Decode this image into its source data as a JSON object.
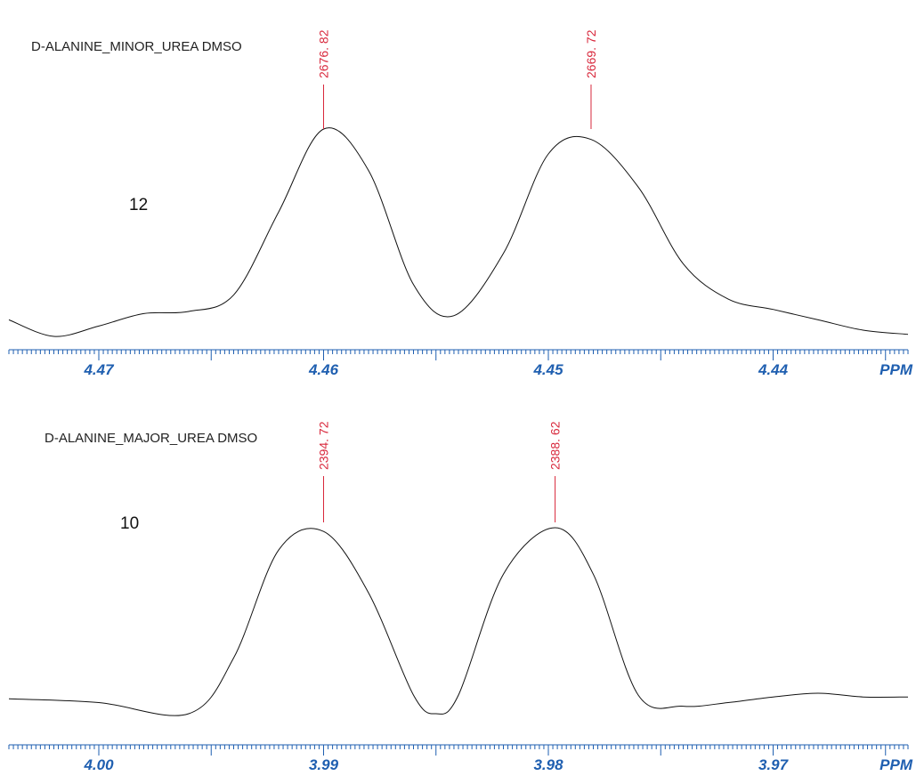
{
  "chart_data": [
    {
      "type": "line",
      "title": "D-ALANINE_MINOR_UREA DMSO",
      "label": "12",
      "xlabel": "PPM",
      "xlim": [
        4.474,
        4.434
      ],
      "xticks": [
        4.47,
        4.46,
        4.45,
        4.44
      ],
      "tick_labels": [
        "4.47",
        "4.46",
        "4.45",
        "4.44"
      ],
      "peak_labels": [
        {
          "x": 4.46,
          "text": "2676. 82"
        },
        {
          "x": 4.4481,
          "text": "2669. 72"
        }
      ],
      "series": [
        {
          "x": [
            4.474,
            4.472,
            4.47,
            4.468,
            4.466,
            4.464,
            4.462,
            4.46,
            4.458,
            4.456,
            4.4542,
            4.452,
            4.45,
            4.4481,
            4.446,
            4.444,
            4.442,
            4.44,
            4.438,
            4.436,
            4.434
          ],
          "y": [
            0.08,
            0.0,
            0.05,
            0.11,
            0.12,
            0.2,
            0.6,
            1.0,
            0.8,
            0.25,
            0.1,
            0.4,
            0.88,
            0.95,
            0.72,
            0.35,
            0.18,
            0.13,
            0.08,
            0.03,
            0.01
          ]
        }
      ]
    },
    {
      "type": "line",
      "title": "D-ALANINE_MAJOR_UREA DMSO",
      "label": "10",
      "xlabel": "PPM",
      "xlim": [
        4.004,
        3.964
      ],
      "xticks": [
        4.0,
        3.99,
        3.98,
        3.97
      ],
      "tick_labels": [
        "4.00",
        "3.99",
        "3.98",
        "3.97"
      ],
      "peak_labels": [
        {
          "x": 3.99,
          "text": "2394. 72"
        },
        {
          "x": 3.9797,
          "text": "2388. 62"
        }
      ],
      "series": [
        {
          "x": [
            4.004,
            4.0,
            3.996,
            3.994,
            3.992,
            3.99,
            3.988,
            3.986,
            3.985,
            3.984,
            3.982,
            3.9797,
            3.978,
            3.976,
            3.974,
            3.972,
            3.97,
            3.968,
            3.966,
            3.964
          ],
          "y": [
            0.08,
            0.06,
            0.0,
            0.3,
            0.88,
            0.98,
            0.65,
            0.1,
            0.0,
            0.1,
            0.75,
            1.0,
            0.75,
            0.1,
            0.04,
            0.06,
            0.09,
            0.11,
            0.09,
            0.09
          ]
        }
      ]
    }
  ]
}
